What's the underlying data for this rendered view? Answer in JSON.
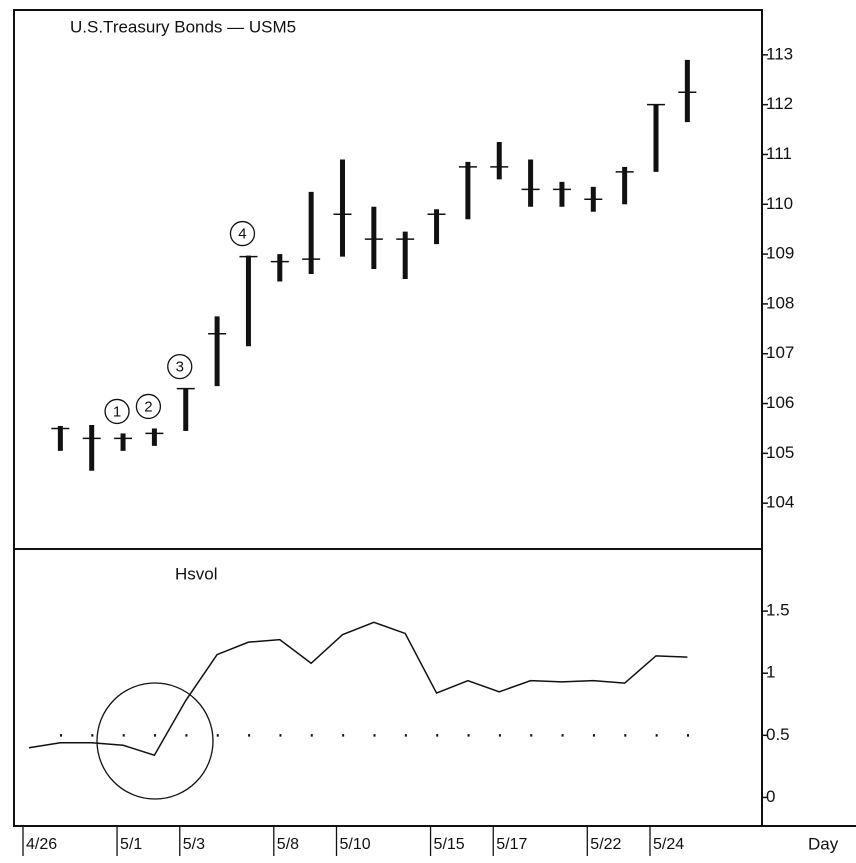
{
  "chart_data": [
    {
      "type": "hlc",
      "title": "U.S.Treasury Bonds — USM5",
      "high": [
        null,
        105.55,
        105.57,
        105.4,
        105.5,
        106.3,
        107.75,
        108.97,
        109.0,
        110.25,
        110.9,
        109.95,
        109.45,
        109.9,
        110.85,
        111.25,
        110.9,
        110.45,
        110.35,
        110.75,
        112.0,
        112.9
      ],
      "low": [
        null,
        105.05,
        104.65,
        105.05,
        105.15,
        105.45,
        106.35,
        107.15,
        108.45,
        108.6,
        108.95,
        108.7,
        108.5,
        109.2,
        109.7,
        110.5,
        109.95,
        109.95,
        109.85,
        110.0,
        110.65,
        111.65
      ],
      "close": [
        null,
        105.5,
        105.3,
        105.3,
        105.4,
        106.3,
        107.4,
        108.95,
        108.85,
        108.9,
        109.8,
        109.3,
        109.3,
        109.8,
        110.75,
        110.75,
        110.3,
        110.3,
        110.1,
        110.65,
        112.0,
        112.25
      ],
      "markers": [
        null,
        null,
        null,
        "1",
        "2",
        "3",
        null,
        "4",
        null,
        null,
        null,
        null,
        null,
        null,
        null,
        null,
        null,
        null,
        null,
        null,
        null,
        null
      ],
      "color": "#111111",
      "ylim": [
        103.1,
        113.9
      ],
      "yticks": [
        104,
        105,
        106,
        107,
        108,
        109,
        110,
        111,
        112,
        113
      ]
    },
    {
      "type": "line",
      "title": "Hsvol",
      "xlabel": "Day",
      "categories": [
        "4/26",
        null,
        null,
        "5/1",
        null,
        "5/3",
        null,
        null,
        "5/8",
        null,
        "5/10",
        null,
        null,
        "5/15",
        null,
        "5/17",
        null,
        null,
        "5/22",
        null,
        "5/24",
        null
      ],
      "values": [
        0.4,
        0.44,
        0.44,
        0.42,
        0.34,
        0.78,
        1.15,
        1.25,
        1.27,
        1.08,
        1.31,
        1.41,
        1.32,
        0.84,
        0.94,
        0.85,
        0.94,
        0.93,
        0.94,
        0.92,
        1.14,
        1.13
      ],
      "hline": 0.5,
      "color": "#111111",
      "ylim": [
        -0.23,
        2.0
      ],
      "yticks": [
        0,
        0.5,
        1,
        1.5
      ]
    }
  ]
}
